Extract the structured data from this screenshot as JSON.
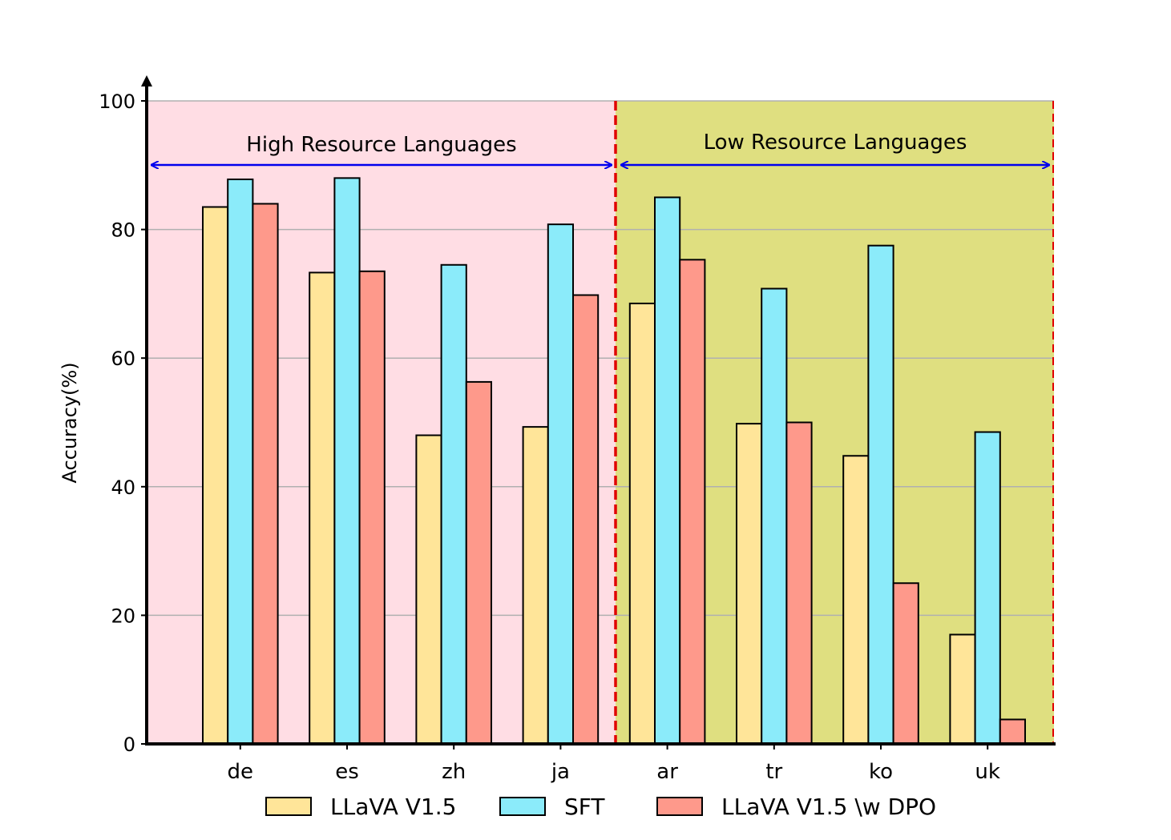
{
  "chart_data": {
    "type": "bar",
    "title": "",
    "xlabel": "",
    "ylabel": "Accuracy(%)",
    "ylim": [
      0,
      100
    ],
    "yticks": [
      "0",
      "20",
      "40",
      "60",
      "80",
      "100"
    ],
    "grid": "horizontal",
    "categories": [
      "de",
      "es",
      "zh",
      "ja",
      "ar",
      "tr",
      "ko",
      "uk"
    ],
    "series": [
      {
        "name": "LLaVA V1.5",
        "color": "#FFE599",
        "values": [
          83.5,
          73.3,
          48.0,
          49.3,
          68.5,
          49.8,
          44.8,
          17.0
        ]
      },
      {
        "name": "SFT",
        "color": "#8BEBFA",
        "values": [
          87.8,
          88.0,
          74.5,
          80.8,
          85.0,
          70.8,
          77.5,
          48.5
        ]
      },
      {
        "name": "LLaVA V1.5 \\w DPO",
        "color": "#FE998B",
        "values": [
          84.0,
          73.5,
          56.3,
          69.8,
          75.3,
          50.0,
          25.0,
          3.8
        ]
      }
    ],
    "regions": [
      {
        "label": "High Resource Languages",
        "categories": [
          "de",
          "es",
          "zh",
          "ja"
        ],
        "color": "#FFDDE4"
      },
      {
        "label": "Low Resource Languages",
        "categories": [
          "ar",
          "tr",
          "ko",
          "uk"
        ],
        "color": "#DFDF80"
      }
    ],
    "legend_position": "bottom-center"
  }
}
